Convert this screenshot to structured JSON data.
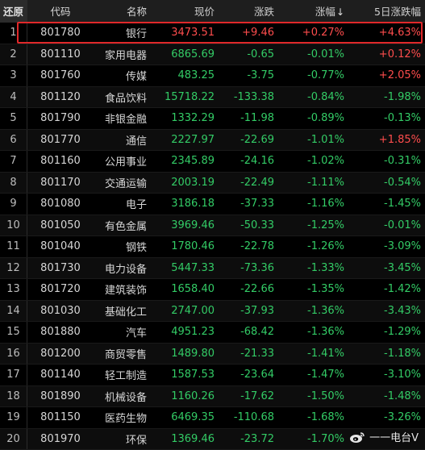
{
  "header": {
    "idx_label": "还原",
    "code_label": "代码",
    "name_label": "名称",
    "price_label": "现价",
    "change_label": "涨跌",
    "pct_label": "涨幅",
    "pct_sort_icon": "↓",
    "pct5_label": "5日涨跌幅"
  },
  "rows": [
    {
      "idx": "1",
      "code": "801780",
      "name": "银行",
      "price": "3473.51",
      "change": "+9.46",
      "pct": "+0.27%",
      "pct5": "+4.63%",
      "dir": "up",
      "dir5": "up"
    },
    {
      "idx": "2",
      "code": "801110",
      "name": "家用电器",
      "price": "6865.69",
      "change": "-0.65",
      "pct": "-0.01%",
      "pct5": "+0.12%",
      "dir": "down",
      "dir5": "up"
    },
    {
      "idx": "3",
      "code": "801760",
      "name": "传媒",
      "price": "483.25",
      "change": "-3.75",
      "pct": "-0.77%",
      "pct5": "+2.05%",
      "dir": "down",
      "dir5": "up"
    },
    {
      "idx": "4",
      "code": "801120",
      "name": "食品饮料",
      "price": "15718.22",
      "change": "-133.38",
      "pct": "-0.84%",
      "pct5": "-1.98%",
      "dir": "down",
      "dir5": "down"
    },
    {
      "idx": "5",
      "code": "801790",
      "name": "非银金融",
      "price": "1332.29",
      "change": "-11.98",
      "pct": "-0.89%",
      "pct5": "-0.13%",
      "dir": "down",
      "dir5": "down"
    },
    {
      "idx": "6",
      "code": "801770",
      "name": "通信",
      "price": "2227.97",
      "change": "-22.69",
      "pct": "-1.01%",
      "pct5": "+1.85%",
      "dir": "down",
      "dir5": "up"
    },
    {
      "idx": "7",
      "code": "801160",
      "name": "公用事业",
      "price": "2345.89",
      "change": "-24.16",
      "pct": "-1.02%",
      "pct5": "-0.31%",
      "dir": "down",
      "dir5": "down"
    },
    {
      "idx": "8",
      "code": "801170",
      "name": "交通运输",
      "price": "2003.19",
      "change": "-22.49",
      "pct": "-1.11%",
      "pct5": "-0.54%",
      "dir": "down",
      "dir5": "down"
    },
    {
      "idx": "9",
      "code": "801080",
      "name": "电子",
      "price": "3186.18",
      "change": "-37.33",
      "pct": "-1.16%",
      "pct5": "-1.45%",
      "dir": "down",
      "dir5": "down"
    },
    {
      "idx": "10",
      "code": "801050",
      "name": "有色金属",
      "price": "3969.46",
      "change": "-50.33",
      "pct": "-1.25%",
      "pct5": "-0.01%",
      "dir": "down",
      "dir5": "down"
    },
    {
      "idx": "11",
      "code": "801040",
      "name": "钢铁",
      "price": "1780.46",
      "change": "-22.78",
      "pct": "-1.26%",
      "pct5": "-3.09%",
      "dir": "down",
      "dir5": "down"
    },
    {
      "idx": "12",
      "code": "801730",
      "name": "电力设备",
      "price": "5447.33",
      "change": "-73.36",
      "pct": "-1.33%",
      "pct5": "-3.45%",
      "dir": "down",
      "dir5": "down"
    },
    {
      "idx": "13",
      "code": "801720",
      "name": "建筑装饰",
      "price": "1658.40",
      "change": "-22.66",
      "pct": "-1.35%",
      "pct5": "-1.42%",
      "dir": "down",
      "dir5": "down"
    },
    {
      "idx": "14",
      "code": "801030",
      "name": "基础化工",
      "price": "2747.00",
      "change": "-37.93",
      "pct": "-1.36%",
      "pct5": "-3.43%",
      "dir": "down",
      "dir5": "down"
    },
    {
      "idx": "15",
      "code": "801880",
      "name": "汽车",
      "price": "4951.23",
      "change": "-68.42",
      "pct": "-1.36%",
      "pct5": "-1.29%",
      "dir": "down",
      "dir5": "down"
    },
    {
      "idx": "16",
      "code": "801200",
      "name": "商贸零售",
      "price": "1489.80",
      "change": "-21.33",
      "pct": "-1.41%",
      "pct5": "-1.18%",
      "dir": "down",
      "dir5": "down"
    },
    {
      "idx": "17",
      "code": "801140",
      "name": "轻工制造",
      "price": "1587.53",
      "change": "-23.64",
      "pct": "-1.47%",
      "pct5": "-3.10%",
      "dir": "down",
      "dir5": "down"
    },
    {
      "idx": "18",
      "code": "801890",
      "name": "机械设备",
      "price": "1160.26",
      "change": "-17.62",
      "pct": "-1.50%",
      "pct5": "-1.48%",
      "dir": "down",
      "dir5": "down"
    },
    {
      "idx": "19",
      "code": "801150",
      "name": "医药生物",
      "price": "6469.35",
      "change": "-110.68",
      "pct": "-1.68%",
      "pct5": "-3.26%",
      "dir": "down",
      "dir5": "down"
    },
    {
      "idx": "20",
      "code": "801970",
      "name": "环保",
      "price": "1369.46",
      "change": "-23.72",
      "pct": "-1.70%",
      "pct5": "",
      "dir": "down",
      "dir5": "down"
    }
  ],
  "watermark": {
    "text": "一一电台V",
    "icon": "weibo-icon"
  },
  "colors": {
    "up": "#ff4d4d",
    "down": "#33cc66",
    "highlight_border": "#e0282a"
  }
}
